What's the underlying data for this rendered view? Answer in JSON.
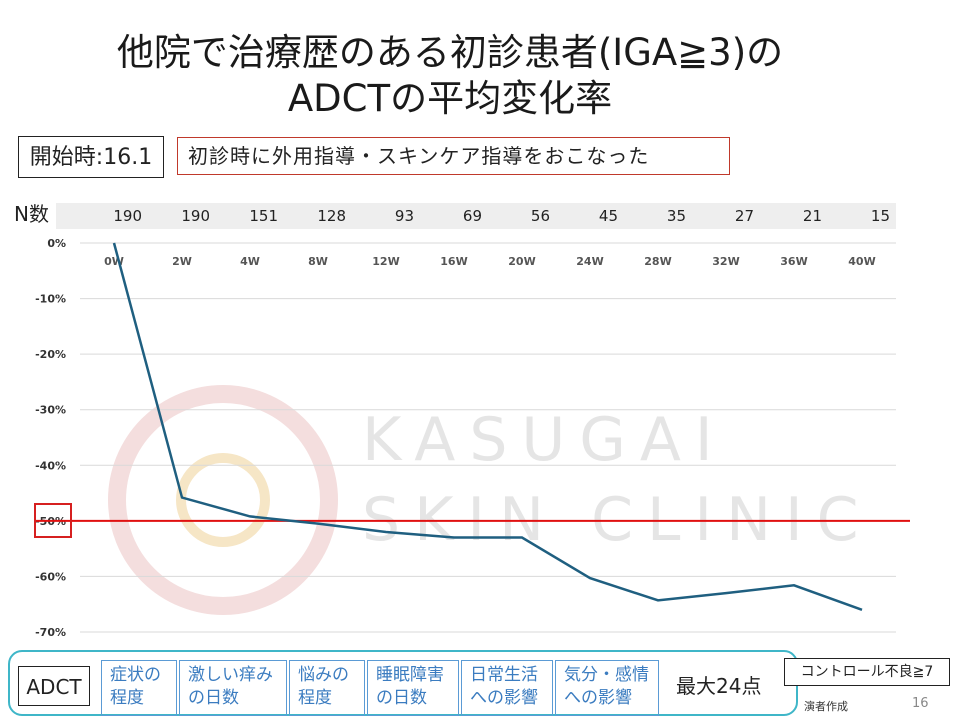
{
  "title": {
    "line1": "他院で治療歴のある初診患者(IGA≧3)の",
    "line2": "ADCTの平均変化率"
  },
  "start_label": "開始時:16.1",
  "note": "初診時に外用指導・スキンケア指導をおこなった",
  "n_label": "N数",
  "n_values": [
    "190",
    "190",
    "151",
    "128",
    "93",
    "69",
    "56",
    "45",
    "35",
    "27",
    "21",
    "15"
  ],
  "watermark": {
    "line1": "KASUGAI",
    "line2": "SKIN CLINIC"
  },
  "chart_data": {
    "type": "line",
    "categories": [
      "0W",
      "2W",
      "4W",
      "8W",
      "12W",
      "16W",
      "20W",
      "24W",
      "28W",
      "32W",
      "36W",
      "40W"
    ],
    "series": [
      {
        "values": [
          0,
          -45.8,
          -49.2,
          -50.5,
          -52,
          -53,
          -53,
          -60.3,
          -64.3,
          -63,
          -61.6,
          -66
        ]
      }
    ],
    "y_ticks": [
      "0%",
      "-10%",
      "-20%",
      "-30%",
      "-40%",
      "-50%",
      "-60%",
      "-70%"
    ],
    "ylim": [
      -70,
      0
    ],
    "reference_line": {
      "value": -50,
      "color": "#e01010"
    },
    "line_color": "#1f5f80",
    "grid": true
  },
  "bottom": {
    "adct_label": "ADCT",
    "items": [
      {
        "line1": "症状の",
        "line2": "程度"
      },
      {
        "line1": "激しい痒み",
        "line2": "の日数"
      },
      {
        "line1": "悩みの",
        "line2": "程度"
      },
      {
        "line1": "睡眠障害",
        "line2": "の日数"
      },
      {
        "line1": "日常生活",
        "line2": "への影響"
      },
      {
        "line1": "気分・感情",
        "line2": "への影響"
      }
    ],
    "max_label": "最大24点",
    "control_label": "コントロール不良≧7",
    "credit": "演者作成",
    "page": "16"
  }
}
